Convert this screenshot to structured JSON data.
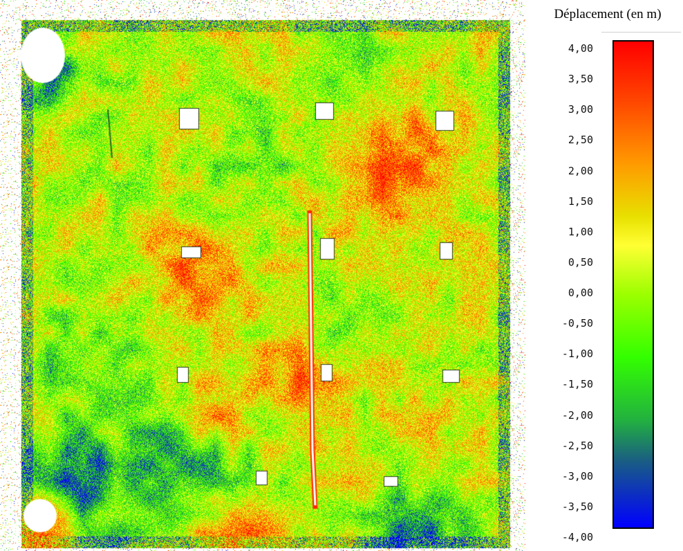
{
  "legend": {
    "title": "Déplacement (en m)",
    "ticks": [
      "4,00",
      "3,50",
      "3,00",
      "2,50",
      "2,00",
      "1,50",
      "1,00",
      "0,50",
      "0,00",
      "-0,50",
      "-1,00",
      "-1,50",
      "-2,00",
      "-2,50",
      "-3,00",
      "-3,50",
      "-4,00"
    ],
    "color_stops": [
      "#ff0000",
      "#ff4400",
      "#ff9900",
      "#e8e000",
      "#ffff33",
      "#9cff00",
      "#33ff00",
      "#22b040",
      "#1a6080",
      "#0000ff"
    ]
  },
  "chart_data": {
    "type": "heatmap",
    "title": "",
    "colorbar_label": "Déplacement (en m)",
    "value_range": [
      -4.0,
      4.0
    ],
    "colorbar_ticks": [
      4.0,
      3.5,
      3.0,
      2.5,
      2.0,
      1.5,
      1.0,
      0.5,
      0.0,
      -0.5,
      -1.0,
      -1.5,
      -2.0,
      -2.5,
      -3.0,
      -3.5,
      -4.0
    ],
    "dominant_values_description_levels": {
      "background_field": 0.5,
      "hotspot_max": 3.0,
      "edge_min": -4.0
    }
  }
}
